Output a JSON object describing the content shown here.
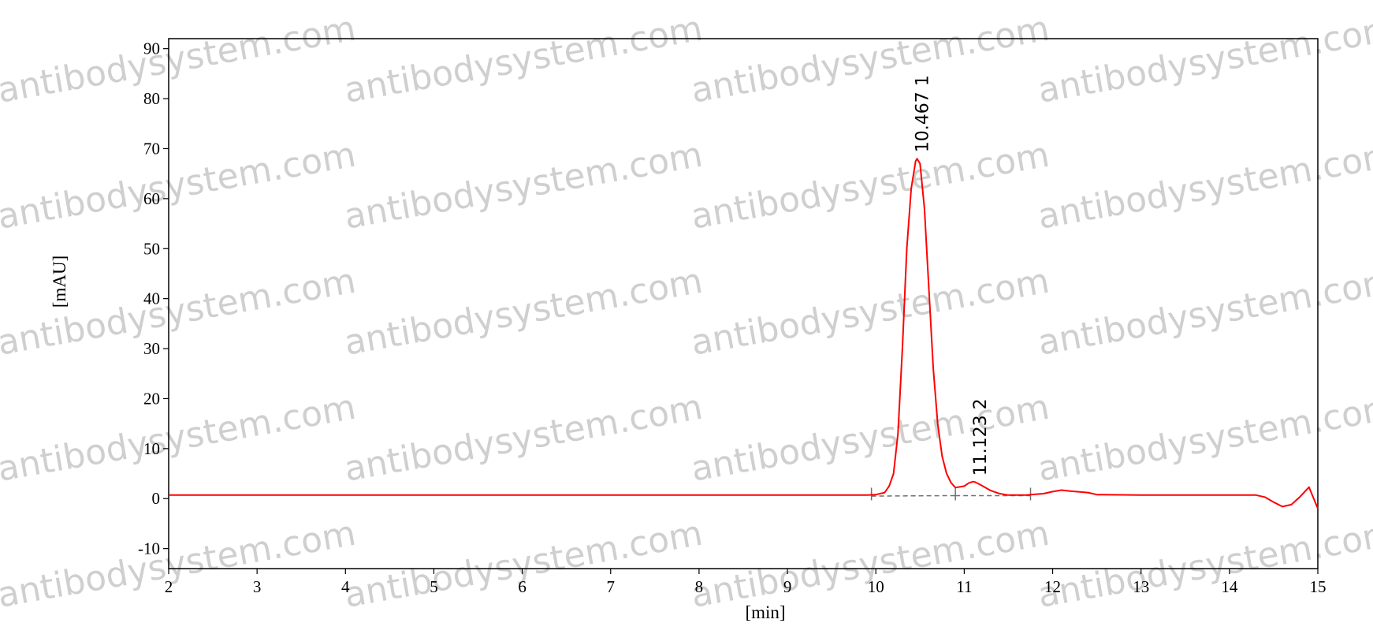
{
  "watermark": "antibodysystem.com",
  "colors": {
    "trace": "#ff0000",
    "baseline": "#707070",
    "axis": "#000000",
    "watermark": "#cfcfcf"
  },
  "chart_data": {
    "type": "line",
    "title": "",
    "xlabel": "[min]",
    "ylabel": "[mAU]",
    "xlim": [
      2,
      15
    ],
    "ylim": [
      -14,
      92
    ],
    "xticks": [
      2,
      3,
      4,
      5,
      6,
      7,
      8,
      9,
      10,
      11,
      12,
      13,
      14,
      15
    ],
    "yticks": [
      -10,
      0,
      10,
      20,
      30,
      40,
      50,
      60,
      70,
      80,
      90
    ],
    "series": [
      {
        "color": "#ff0000",
        "x": [
          2.0,
          9.5,
          9.9,
          10.0,
          10.1,
          10.15,
          10.2,
          10.25,
          10.3,
          10.35,
          10.4,
          10.45,
          10.467,
          10.5,
          10.55,
          10.6,
          10.65,
          10.7,
          10.75,
          10.8,
          10.85,
          10.9,
          11.0,
          11.05,
          11.1,
          11.123,
          11.2,
          11.3,
          11.4,
          11.5,
          11.7,
          11.9,
          12.0,
          12.1,
          12.2,
          12.4,
          12.5,
          13.0,
          14.0,
          14.3,
          14.4,
          14.5,
          14.6,
          14.7,
          14.8,
          14.9,
          15.0
        ],
        "y": [
          0.7,
          0.7,
          0.7,
          0.8,
          1.2,
          2.5,
          5.0,
          13.0,
          30.0,
          50.0,
          62.0,
          67.5,
          68.0,
          67.0,
          58.0,
          42.0,
          26.0,
          15.0,
          8.5,
          5.0,
          3.2,
          2.2,
          2.5,
          3.1,
          3.4,
          3.3,
          2.6,
          1.6,
          1.0,
          0.7,
          0.7,
          1.0,
          1.4,
          1.7,
          1.5,
          1.2,
          0.8,
          0.7,
          0.7,
          0.7,
          0.3,
          -0.7,
          -1.6,
          -1.2,
          0.4,
          2.3,
          -2.0
        ]
      }
    ],
    "baselines": [
      {
        "x": [
          9.95,
          10.9
        ],
        "y": [
          0.5,
          0.6
        ]
      },
      {
        "x": [
          10.9,
          11.75
        ],
        "y": [
          0.6,
          0.6
        ]
      }
    ],
    "peak_marks": [
      9.95,
      10.9,
      11.75
    ],
    "peaks": [
      {
        "number": "1",
        "rt": "10.467",
        "x": 10.467,
        "y": 68.0
      },
      {
        "number": "2",
        "rt": "11.123",
        "x": 11.123,
        "y": 3.3
      }
    ]
  }
}
